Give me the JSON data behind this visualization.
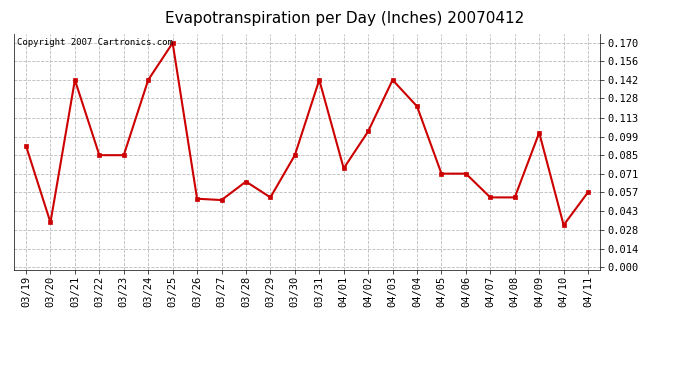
{
  "title": "Evapotranspiration per Day (Inches) 20070412",
  "copyright_text": "Copyright 2007 Cartronics.com",
  "x_labels": [
    "03/19",
    "03/20",
    "03/21",
    "03/22",
    "03/23",
    "03/24",
    "03/25",
    "03/26",
    "03/27",
    "03/28",
    "03/29",
    "03/30",
    "03/31",
    "04/01",
    "04/02",
    "04/03",
    "04/04",
    "04/05",
    "04/06",
    "04/07",
    "04/08",
    "04/09",
    "04/10",
    "04/11"
  ],
  "y_values": [
    0.092,
    0.034,
    0.142,
    0.085,
    0.085,
    0.142,
    0.17,
    0.052,
    0.051,
    0.065,
    0.053,
    0.085,
    0.142,
    0.075,
    0.103,
    0.142,
    0.122,
    0.071,
    0.071,
    0.053,
    0.053,
    0.102,
    0.032,
    0.057
  ],
  "line_color": "#cc0000",
  "marker": "s",
  "marker_size": 2.5,
  "line_width": 1.5,
  "background_color": "#ffffff",
  "plot_bg_color": "#ffffff",
  "grid_color": "#bbbbbb",
  "y_ticks": [
    0.0,
    0.014,
    0.028,
    0.043,
    0.057,
    0.071,
    0.085,
    0.099,
    0.113,
    0.128,
    0.142,
    0.156,
    0.17
  ],
  "ylim": [
    -0.002,
    0.177
  ],
  "title_fontsize": 11,
  "copyright_fontsize": 6.5,
  "tick_fontsize": 7.5
}
